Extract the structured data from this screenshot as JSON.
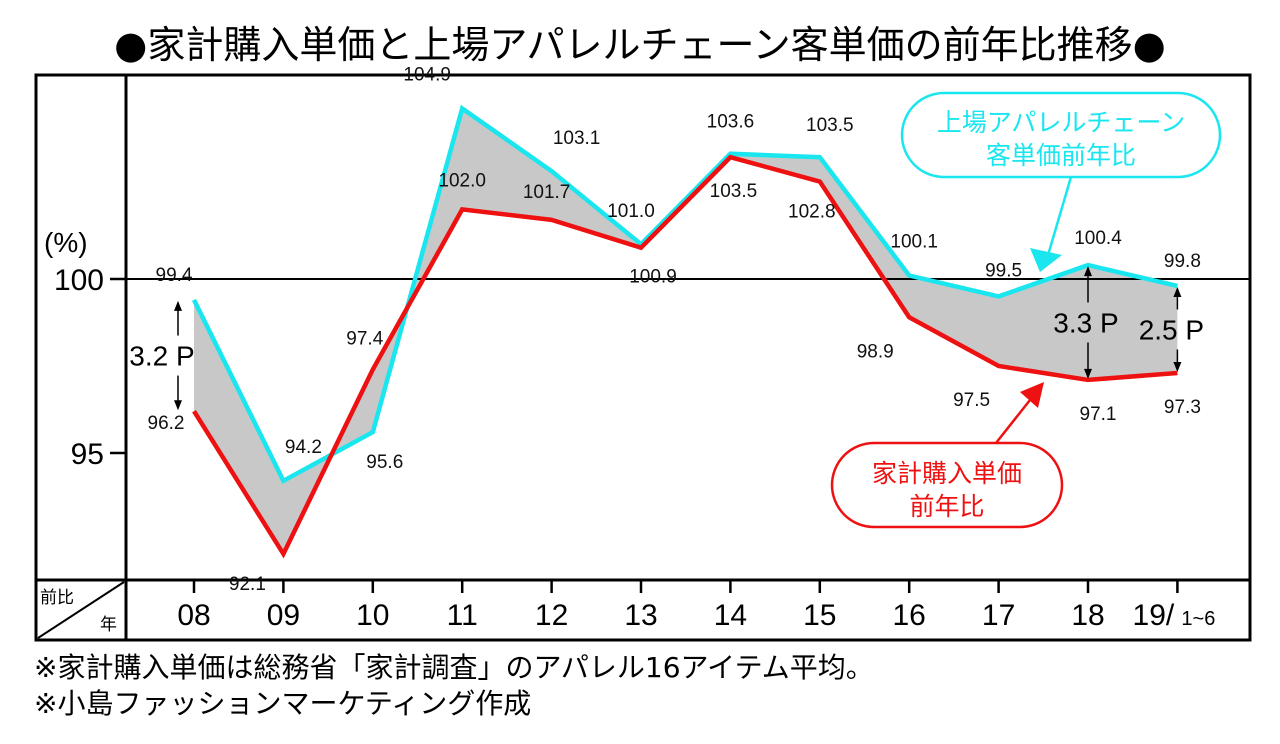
{
  "title": "●家計購入単価と上場アパレルチェーン客単価の前年比推移●",
  "notes": [
    "※家計購入単価は総務省「家計調査」のアパレル16アイテム平均。",
    "※小島ファッションマーケティング作成"
  ],
  "colors": {
    "apparel_chain": "#19e6ee",
    "household": "#ee1111",
    "gap_fill": "#c8c8c8"
  },
  "chart_data": {
    "type": "line",
    "title": "●家計購入単価と上場アパレルチェーン客単価の前年比推移●",
    "xlabel": "年",
    "ylabel": "(%)",
    "corner_label_top": "前比",
    "corner_label_bottom": "年",
    "x": [
      "08",
      "09",
      "10",
      "11",
      "12",
      "13",
      "14",
      "15",
      "16",
      "17",
      "18",
      "19"
    ],
    "x_tick_labels": [
      "08",
      "09",
      "10",
      "11",
      "12",
      "13",
      "14",
      "15",
      "16",
      "17",
      "18",
      "19/"
    ],
    "x_last_suffix": "1~6",
    "y_ticks": [
      100,
      95
    ],
    "ylim": [
      91,
      105.8
    ],
    "reference_line": 100,
    "grid": false,
    "gap_shading": true,
    "series": [
      {
        "name": "上場アパレルチェーン客単価前年比",
        "callout": [
          "上場アパレルチェーン",
          "客単価前年比"
        ],
        "color": "#19e6ee",
        "values": [
          99.4,
          94.2,
          95.6,
          104.9,
          103.1,
          101.0,
          103.6,
          103.5,
          100.1,
          99.5,
          100.4,
          99.8
        ]
      },
      {
        "name": "家計購入単価前年比",
        "callout": [
          "家計購入単価",
          "前年比"
        ],
        "color": "#ee1111",
        "values": [
          96.2,
          92.1,
          97.4,
          102.0,
          101.7,
          100.9,
          103.5,
          102.8,
          98.9,
          97.5,
          97.1,
          97.3
        ]
      }
    ],
    "annotations": [
      {
        "text": "3.2 P",
        "x": "08",
        "between": [
          99.4,
          96.2
        ]
      },
      {
        "text": "3.3 P",
        "x": "18",
        "between": [
          100.4,
          97.1
        ]
      },
      {
        "text": "2.5 P",
        "x": "19",
        "between": [
          99.8,
          97.3
        ]
      }
    ],
    "legend": "callouts"
  }
}
